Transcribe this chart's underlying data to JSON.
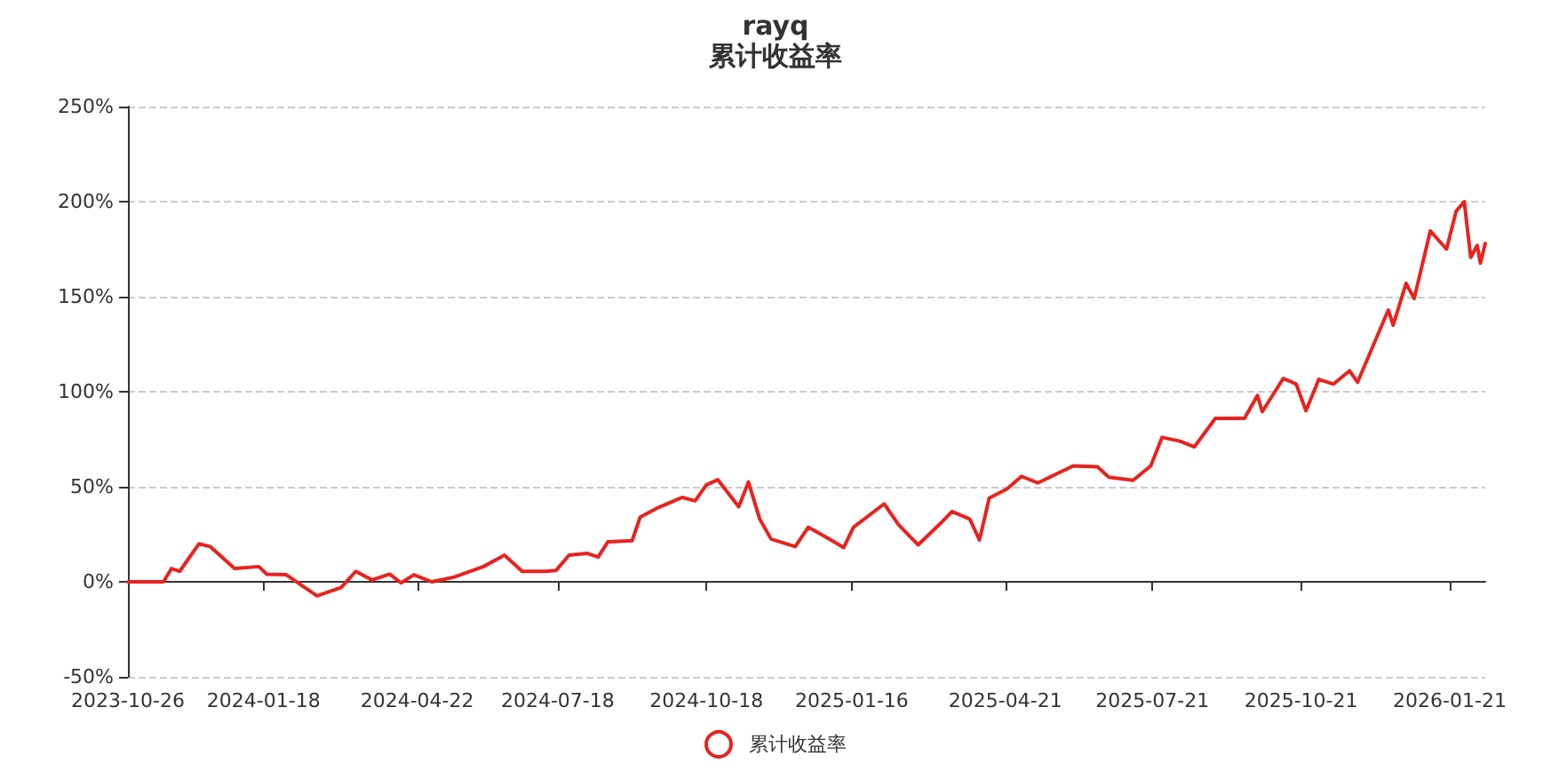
{
  "chart_data": {
    "type": "line",
    "title": "rayq",
    "subtitle": "累计收益率",
    "x": [
      "2023-10-26",
      "2023-11-17",
      "2023-11-22",
      "2023-11-27",
      "2023-12-09",
      "2023-12-16",
      "2023-12-31",
      "2024-01-15",
      "2024-01-20",
      "2024-02-01",
      "2024-02-20",
      "2024-03-06",
      "2024-03-15",
      "2024-03-25",
      "2024-04-05",
      "2024-04-12",
      "2024-04-20",
      "2024-05-01",
      "2024-05-15",
      "2024-06-02",
      "2024-06-15",
      "2024-06-26",
      "2024-07-10",
      "2024-07-17",
      "2024-07-25",
      "2024-08-05",
      "2024-08-12",
      "2024-08-18",
      "2024-09-02",
      "2024-09-07",
      "2024-09-18",
      "2024-09-28",
      "2024-10-03",
      "2024-10-11",
      "2024-10-18",
      "2024-10-25",
      "2024-11-07",
      "2024-11-13",
      "2024-11-20",
      "2024-11-27",
      "2024-12-12",
      "2024-12-20",
      "2025-01-02",
      "2025-01-11",
      "2025-01-17",
      "2025-02-05",
      "2025-02-14",
      "2025-02-26",
      "2025-03-11",
      "2025-03-19",
      "2025-03-30",
      "2025-04-05",
      "2025-04-11",
      "2025-04-22",
      "2025-05-01",
      "2025-05-11",
      "2025-06-02",
      "2025-06-17",
      "2025-06-24",
      "2025-07-09",
      "2025-07-20",
      "2025-07-27",
      "2025-08-07",
      "2025-08-16",
      "2025-08-29",
      "2025-09-16",
      "2025-09-24",
      "2025-09-27",
      "2025-10-10",
      "2025-10-18",
      "2025-10-24",
      "2025-11-01",
      "2025-11-10",
      "2025-11-20",
      "2025-11-25",
      "2025-12-03",
      "2025-12-14",
      "2025-12-17",
      "2025-12-25",
      "2025-12-30",
      "2026-01-09",
      "2026-01-19",
      "2026-01-25",
      "2026-01-30",
      "2026-02-03",
      "2026-02-07",
      "2026-02-09",
      "2026-02-12"
    ],
    "series": [
      {
        "name": "累计收益率",
        "color": "#e8231f",
        "values": [
          0,
          0,
          7,
          5.5,
          20,
          18.5,
          7,
          8,
          4,
          3.7,
          -7.4,
          -3,
          5.5,
          1,
          4,
          -0.6,
          3.7,
          0,
          2.5,
          8,
          14,
          5.5,
          5.5,
          6,
          14,
          15,
          13,
          21,
          21.6,
          34,
          39,
          42.6,
          44.4,
          42.6,
          51,
          53.7,
          39.5,
          52.5,
          33,
          22.5,
          18.5,
          28.7,
          22.5,
          18,
          28.7,
          41,
          30,
          19.4,
          30,
          37,
          33,
          22,
          44,
          48.8,
          55.5,
          52,
          61,
          60.5,
          55,
          53.4,
          61,
          76,
          74,
          71,
          86,
          86,
          98,
          89.5,
          107,
          104,
          90,
          106.5,
          104,
          111,
          105,
          121,
          143,
          135,
          157,
          149,
          184.6,
          175,
          195,
          200,
          170.7,
          177,
          167.6,
          178
        ]
      }
    ],
    "xlim": [
      "2023-10-26",
      "2026-02-12"
    ],
    "xticks": [
      "2023-10-26",
      "2024-01-18",
      "2024-04-22",
      "2024-07-18",
      "2024-10-18",
      "2025-01-16",
      "2025-04-21",
      "2025-07-21",
      "2025-10-21",
      "2026-01-21"
    ],
    "ylim": [
      -50,
      250
    ],
    "yticks": [
      {
        "value": -50,
        "label": "-50%"
      },
      {
        "value": 0,
        "label": "0%"
      },
      {
        "value": 50,
        "label": "50%"
      },
      {
        "value": 100,
        "label": "100%"
      },
      {
        "value": 150,
        "label": "150%"
      },
      {
        "value": 200,
        "label": "200%"
      },
      {
        "value": 250,
        "label": "250%"
      }
    ],
    "grid": "y",
    "legend": "bottom",
    "line_style": "solid"
  }
}
